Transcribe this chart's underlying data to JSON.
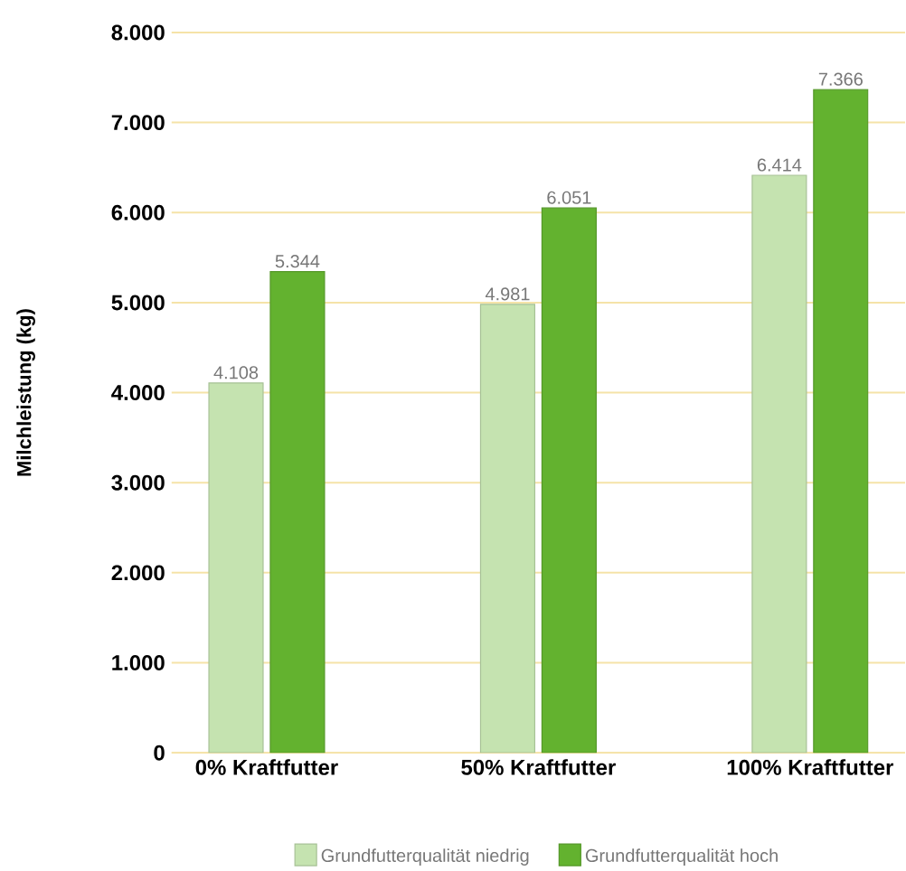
{
  "chart_data": {
    "type": "bar",
    "ylabel": "Milchleistung (kg)",
    "categories": [
      "0% Kraftfutter",
      "50% Kraftfutter",
      "100% Kraftfutter"
    ],
    "series": [
      {
        "name": "Grundfutterqualität niedrig",
        "color": "#c5e3b0",
        "values": [
          4108,
          4981,
          6414
        ],
        "value_labels": [
          "4.108",
          "4.981",
          "6.414"
        ]
      },
      {
        "name": "Grundfutterqualität hoch",
        "color": "#63b22f",
        "values": [
          5344,
          6051,
          7366
        ],
        "value_labels": [
          "5.344",
          "6.051",
          "7.366"
        ]
      }
    ],
    "ylim": [
      0,
      8000
    ],
    "yticks": [
      {
        "value": 0,
        "label": "0"
      },
      {
        "value": 1000,
        "label": "1.000"
      },
      {
        "value": 2000,
        "label": "2.000"
      },
      {
        "value": 3000,
        "label": "3.000"
      },
      {
        "value": 4000,
        "label": "4.000"
      },
      {
        "value": 5000,
        "label": "5.000"
      },
      {
        "value": 6000,
        "label": "6.000"
      },
      {
        "value": 7000,
        "label": "7.000"
      },
      {
        "value": 8000,
        "label": "8.000"
      }
    ],
    "grid": "y",
    "legend": "bottom"
  }
}
